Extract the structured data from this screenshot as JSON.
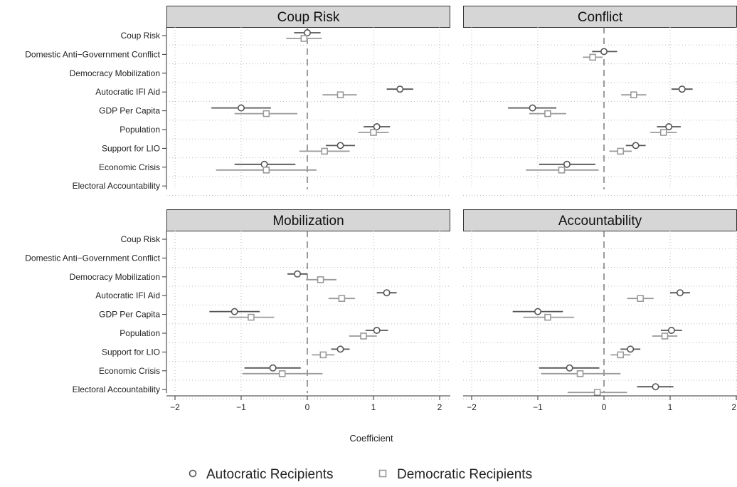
{
  "chart_data": {
    "type": "coefficient-plot",
    "xlabel": "Coefficient",
    "xlim": [
      -2,
      2
    ],
    "xticks": [
      -2,
      -1,
      0,
      1,
      2
    ],
    "reference_line": 0,
    "grid": "dotted",
    "legend_placement": "bottom",
    "rows": [
      "Coup Risk",
      "Domestic Anti−Government Conflict",
      "Democracy Mobilization",
      "Autocratic IFI Aid",
      "GDP Per Capita",
      "Population",
      "Support for LIO",
      "Economic Crisis",
      "Electoral Accountability"
    ],
    "series": [
      {
        "name": "Autocratic Recipients",
        "marker": "circle",
        "color": "#555555"
      },
      {
        "name": "Democratic Recipients",
        "marker": "square",
        "color": "#9a9a9a"
      }
    ],
    "panels": [
      {
        "title": "Coup Risk",
        "autocratic": [
          {
            "row": 0,
            "est": 0.0,
            "lo": -0.2,
            "hi": 0.2
          },
          {
            "row": 3,
            "est": 1.4,
            "lo": 1.2,
            "hi": 1.6
          },
          {
            "row": 4,
            "est": -1.0,
            "lo": -1.45,
            "hi": -0.55
          },
          {
            "row": 5,
            "est": 1.05,
            "lo": 0.85,
            "hi": 1.25
          },
          {
            "row": 6,
            "est": 0.5,
            "lo": 0.28,
            "hi": 0.72
          },
          {
            "row": 7,
            "est": -0.65,
            "lo": -1.1,
            "hi": -0.18
          }
        ],
        "democratic": [
          {
            "row": 0,
            "est": -0.05,
            "lo": -0.32,
            "hi": 0.22
          },
          {
            "row": 3,
            "est": 0.5,
            "lo": 0.23,
            "hi": 0.75
          },
          {
            "row": 4,
            "est": -0.62,
            "lo": -1.1,
            "hi": -0.15
          },
          {
            "row": 5,
            "est": 1.0,
            "lo": 0.77,
            "hi": 1.23
          },
          {
            "row": 6,
            "est": 0.26,
            "lo": -0.12,
            "hi": 0.64
          },
          {
            "row": 7,
            "est": -0.62,
            "lo": -1.38,
            "hi": 0.14
          }
        ]
      },
      {
        "title": "Conflict",
        "autocratic": [
          {
            "row": 1,
            "est": 0.0,
            "lo": -0.18,
            "hi": 0.2
          },
          {
            "row": 3,
            "est": 1.18,
            "lo": 1.02,
            "hi": 1.34
          },
          {
            "row": 4,
            "est": -1.08,
            "lo": -1.45,
            "hi": -0.72
          },
          {
            "row": 5,
            "est": 0.98,
            "lo": 0.8,
            "hi": 1.16
          },
          {
            "row": 6,
            "est": 0.48,
            "lo": 0.33,
            "hi": 0.63
          },
          {
            "row": 7,
            "est": -0.56,
            "lo": -0.98,
            "hi": -0.13
          }
        ],
        "democratic": [
          {
            "row": 1,
            "est": -0.17,
            "lo": -0.32,
            "hi": -0.02
          },
          {
            "row": 3,
            "est": 0.45,
            "lo": 0.26,
            "hi": 0.64
          },
          {
            "row": 4,
            "est": -0.85,
            "lo": -1.13,
            "hi": -0.57
          },
          {
            "row": 5,
            "est": 0.9,
            "lo": 0.7,
            "hi": 1.1
          },
          {
            "row": 6,
            "est": 0.25,
            "lo": 0.08,
            "hi": 0.42
          },
          {
            "row": 7,
            "est": -0.64,
            "lo": -1.18,
            "hi": -0.08
          }
        ]
      },
      {
        "title": "Mobilization",
        "autocratic": [
          {
            "row": 2,
            "est": -0.15,
            "lo": -0.3,
            "hi": 0.0
          },
          {
            "row": 3,
            "est": 1.2,
            "lo": 1.05,
            "hi": 1.35
          },
          {
            "row": 4,
            "est": -1.1,
            "lo": -1.48,
            "hi": -0.72
          },
          {
            "row": 5,
            "est": 1.05,
            "lo": 0.88,
            "hi": 1.22
          },
          {
            "row": 6,
            "est": 0.5,
            "lo": 0.36,
            "hi": 0.64
          },
          {
            "row": 7,
            "est": -0.52,
            "lo": -0.95,
            "hi": -0.1
          }
        ],
        "democratic": [
          {
            "row": 2,
            "est": 0.2,
            "lo": -0.02,
            "hi": 0.44
          },
          {
            "row": 3,
            "est": 0.52,
            "lo": 0.32,
            "hi": 0.72
          },
          {
            "row": 4,
            "est": -0.85,
            "lo": -1.18,
            "hi": -0.5
          },
          {
            "row": 5,
            "est": 0.85,
            "lo": 0.63,
            "hi": 1.05
          },
          {
            "row": 6,
            "est": 0.24,
            "lo": 0.07,
            "hi": 0.41
          },
          {
            "row": 7,
            "est": -0.38,
            "lo": -0.98,
            "hi": 0.23
          }
        ]
      },
      {
        "title": "Accountability",
        "autocratic": [
          {
            "row": 3,
            "est": 1.15,
            "lo": 1.0,
            "hi": 1.3
          },
          {
            "row": 4,
            "est": -1.0,
            "lo": -1.38,
            "hi": -0.62
          },
          {
            "row": 5,
            "est": 1.02,
            "lo": 0.86,
            "hi": 1.18
          },
          {
            "row": 6,
            "est": 0.4,
            "lo": 0.25,
            "hi": 0.55
          },
          {
            "row": 7,
            "est": -0.52,
            "lo": -0.98,
            "hi": -0.07
          },
          {
            "row": 8,
            "est": 0.78,
            "lo": 0.5,
            "hi": 1.05
          }
        ],
        "democratic": [
          {
            "row": 3,
            "est": 0.55,
            "lo": 0.35,
            "hi": 0.75
          },
          {
            "row": 4,
            "est": -0.85,
            "lo": -1.22,
            "hi": -0.45
          },
          {
            "row": 5,
            "est": 0.92,
            "lo": 0.73,
            "hi": 1.11
          },
          {
            "row": 6,
            "est": 0.25,
            "lo": 0.1,
            "hi": 0.4
          },
          {
            "row": 7,
            "est": -0.36,
            "lo": -0.95,
            "hi": 0.25
          },
          {
            "row": 8,
            "est": -0.1,
            "lo": -0.55,
            "hi": 0.35
          }
        ]
      }
    ]
  }
}
